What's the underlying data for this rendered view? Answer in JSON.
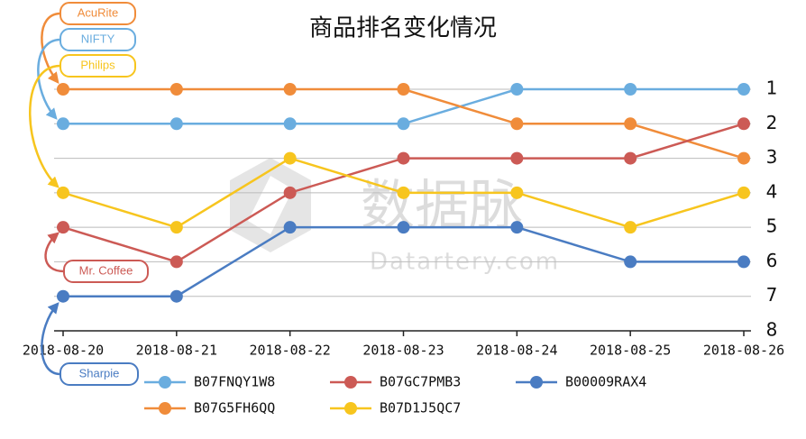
{
  "chart_data": {
    "type": "line",
    "title": "商品排名变化情况",
    "categories": [
      "2018-08-20",
      "2018-08-21",
      "2018-08-22",
      "2018-08-23",
      "2018-08-24",
      "2018-08-25",
      "2018-08-26"
    ],
    "series": [
      {
        "name": "B07FNQY1W8",
        "color": "#6aaddf",
        "values": [
          2,
          2,
          2,
          2,
          1,
          1,
          1
        ]
      },
      {
        "name": "B07G5FH6QQ",
        "color": "#f08c3a",
        "values": [
          1,
          1,
          1,
          1,
          2,
          2,
          3
        ]
      },
      {
        "name": "B07GC7PMB3",
        "color": "#cc5a55",
        "values": [
          5,
          6,
          4,
          3,
          3,
          3,
          2
        ]
      },
      {
        "name": "B07D1J5QC7",
        "color": "#f7c51e",
        "values": [
          4,
          5,
          3,
          4,
          4,
          5,
          4
        ]
      },
      {
        "name": "B00009RAX4",
        "color": "#4a7cc2",
        "values": [
          7,
          7,
          5,
          5,
          5,
          6,
          6
        ]
      }
    ],
    "ylim": [
      1,
      8
    ],
    "y_inverted": true,
    "y_axis_side": "right",
    "yticks": [
      1,
      2,
      3,
      4,
      5,
      6,
      7,
      8
    ],
    "grid": true,
    "legend": "bottom",
    "annotations": [
      {
        "text": "AcuRite",
        "color": "#f08c3a"
      },
      {
        "text": "NIFTY",
        "color": "#6aaddf"
      },
      {
        "text": "Philips",
        "color": "#f7c51e"
      },
      {
        "text": "Mr. Coffee",
        "color": "#cc5a55"
      },
      {
        "text": "Sharpie",
        "color": "#4a7cc2"
      }
    ],
    "watermark": [
      "数据脉",
      "Datartery.com"
    ]
  }
}
